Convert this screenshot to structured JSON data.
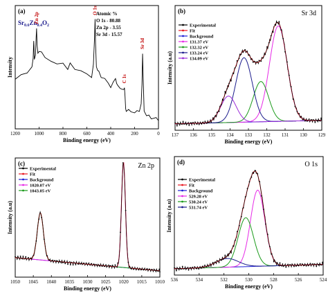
{
  "chart_data": [
    {
      "panel": "(a)",
      "type": "line",
      "compound": {
        "parts": [
          "Sr",
          "0.6",
          "Zn",
          "0.4",
          "O",
          "2"
        ]
      },
      "atomic": {
        "title": "Atomic %",
        "rows": [
          "O 1s - 80.88",
          "Zn 2p - 3.55",
          "Sr 3d - 15.57"
        ]
      },
      "xlabel": "Binding energy (eV)",
      "ylabel": "Intensity",
      "xlim": [
        1200,
        0
      ],
      "xticks": [
        "1200",
        "1000",
        "800",
        "600",
        "400",
        "200",
        "0"
      ],
      "peaks": [
        {
          "label": "Zn 2p",
          "x": 1021
        },
        {
          "label": "O 1s",
          "x": 531
        },
        {
          "label": "C 1s",
          "x": 285
        },
        {
          "label": "Sr 3d",
          "x": 133
        }
      ],
      "series": [
        {
          "color": "#000000",
          "x": [
            1200,
            1150,
            1100,
            1060,
            1050,
            1045,
            1043,
            1040,
            1030,
            1025,
            1021,
            1017,
            1010,
            1000,
            980,
            950,
            900,
            850,
            800,
            760,
            740,
            700,
            650,
            600,
            560,
            545,
            535,
            531,
            527,
            520,
            510,
            500,
            480,
            450,
            420,
            400,
            380,
            360,
            350,
            340,
            320,
            300,
            290,
            285,
            280,
            275,
            270,
            250,
            230,
            200,
            180,
            160,
            145,
            138,
            133,
            128,
            120,
            100,
            80,
            60,
            40,
            20,
            0
          ],
          "y": [
            0.4,
            0.43,
            0.47,
            0.5,
            0.58,
            0.75,
            0.68,
            0.58,
            0.62,
            0.75,
            0.86,
            0.7,
            0.62,
            0.66,
            0.63,
            0.59,
            0.57,
            0.52,
            0.55,
            0.49,
            0.53,
            0.5,
            0.47,
            0.44,
            0.43,
            0.52,
            0.78,
            0.94,
            0.7,
            0.52,
            0.48,
            0.46,
            0.43,
            0.4,
            0.36,
            0.34,
            0.36,
            0.41,
            0.37,
            0.33,
            0.33,
            0.31,
            0.3,
            0.34,
            0.24,
            0.14,
            0.13,
            0.12,
            0.12,
            0.11,
            0.11,
            0.13,
            0.18,
            0.35,
            0.64,
            0.4,
            0.12,
            0.09,
            0.07,
            0.06,
            0.06,
            0.05,
            0.05
          ]
        }
      ]
    },
    {
      "panel": "(b)",
      "type": "line",
      "title": "Sr 3d",
      "xlabel": "Binding energy (eV)",
      "ylabel": "Intensity (a.u)",
      "xlim": [
        137,
        129
      ],
      "xticks": [
        "137",
        "136",
        "135",
        "134",
        "133",
        "132",
        "131",
        "130",
        "129"
      ],
      "legend": [
        {
          "label": "Experimental",
          "color": "#000000"
        },
        {
          "label": "Fit",
          "color": "#e8141e"
        },
        {
          "label": "Background",
          "color": "#1c1cd6"
        },
        {
          "label": "131.37 eV",
          "color": "#e628e6"
        },
        {
          "label": "132.32 eV",
          "color": "#1a9a1a"
        },
        {
          "label": "133.24 eV",
          "color": "#1a1a8c"
        },
        {
          "label": "134.09 eV",
          "color": "#9a2ad8"
        }
      ],
      "components": [
        {
          "center": 131.37,
          "height": 0.83,
          "sigma": 0.48
        },
        {
          "center": 132.32,
          "height": 0.35,
          "sigma": 0.42
        },
        {
          "center": 133.24,
          "height": 0.56,
          "sigma": 0.45
        },
        {
          "center": 134.09,
          "height": 0.23,
          "sigma": 0.42
        }
      ],
      "background": [
        0.02,
        0.05
      ]
    },
    {
      "panel": "(c)",
      "type": "line",
      "title": "Zn 2p",
      "xlabel": "Binding energy (eV)",
      "ylabel": "Intensity (a.u)",
      "xlim": [
        1050,
        1010
      ],
      "xticks": [
        "1050",
        "1045",
        "1040",
        "1035",
        "1030",
        "1025",
        "1020",
        "1015",
        "1010"
      ],
      "legend": [
        {
          "label": "Experimental",
          "color": "#000000"
        },
        {
          "label": "Fit",
          "color": "#e8141e"
        },
        {
          "label": "Background",
          "color": "#1c1cd6"
        },
        {
          "label": "1020.07 eV",
          "color": "#e628e6"
        },
        {
          "label": "1043.05 eV",
          "color": "#1a9a1a"
        }
      ],
      "components": [
        {
          "center": 1020.07,
          "height": 0.96,
          "sigma": 0.55
        },
        {
          "center": 1043.05,
          "height": 0.43,
          "sigma": 0.85
        }
      ],
      "background": [
        0.14,
        0.02
      ]
    },
    {
      "panel": "(d)",
      "type": "line",
      "title": "O 1s",
      "xlabel": "Binding energy (eV)",
      "ylabel": "Intensity (a.u)",
      "xlim": [
        536,
        524
      ],
      "xticks": [
        "536",
        "534",
        "532",
        "530",
        "528",
        "526",
        "524"
      ],
      "legend": [
        {
          "label": "Experimental",
          "color": "#000000"
        },
        {
          "label": "Fit",
          "color": "#e8141e"
        },
        {
          "label": "Background",
          "color": "#1c1cd6"
        },
        {
          "label": "529.28 eV",
          "color": "#e628e6"
        },
        {
          "label": "530.24 eV",
          "color": "#1a9a1a"
        },
        {
          "label": "531.74 eV",
          "color": "#1a1a8c"
        }
      ],
      "components": [
        {
          "center": 529.28,
          "height": 0.7,
          "sigma": 0.58
        },
        {
          "center": 530.24,
          "height": 0.45,
          "sigma": 0.62
        },
        {
          "center": 531.74,
          "height": 0.08,
          "sigma": 0.9
        }
      ],
      "background": [
        0.02,
        0.06
      ]
    }
  ]
}
